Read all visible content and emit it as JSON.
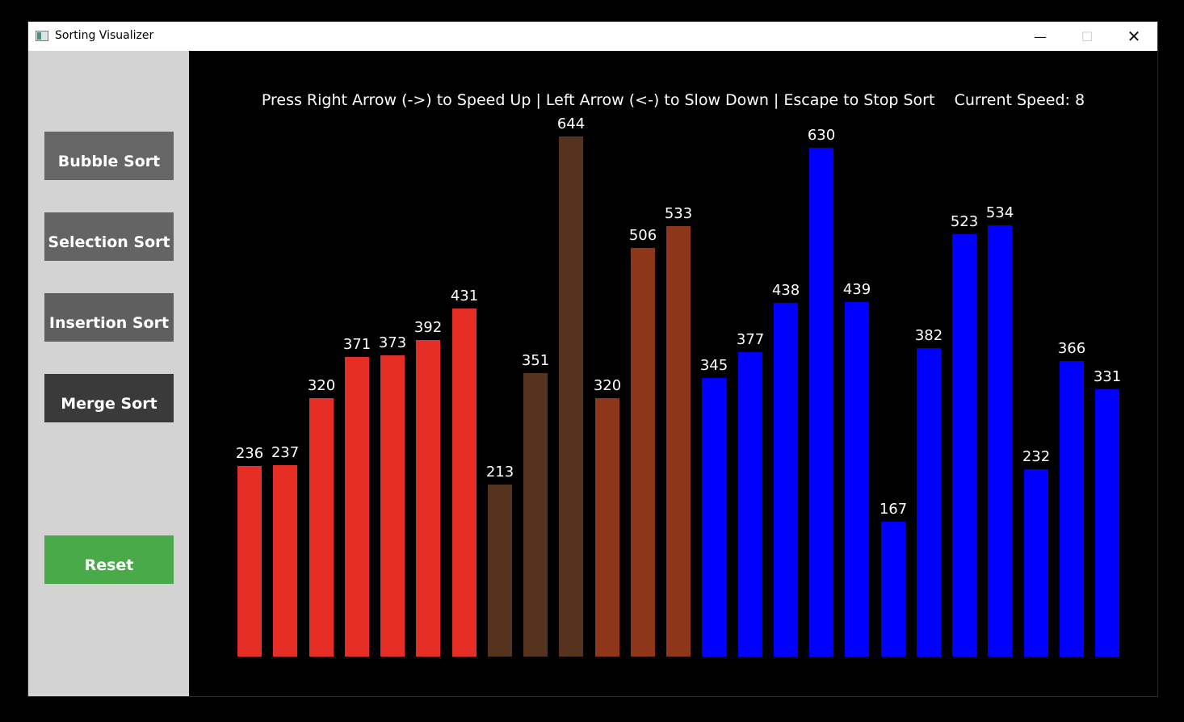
{
  "window": {
    "title": "Sorting Visualizer",
    "controls": {
      "minimize": "—",
      "maximize": "☐",
      "close": "✕"
    }
  },
  "sidebar": {
    "bubble_label": "Bubble Sort",
    "selection_label": "Selection Sort",
    "insertion_label": "Insertion Sort",
    "merge_label": "Merge Sort",
    "reset_label": "Reset"
  },
  "canvas": {
    "instructions": "Press Right Arrow (->) to Speed Up | Left Arrow (<-) to Slow Down | Escape to Stop Sort    Current Speed: 8"
  },
  "colors": {
    "sorted_left": "#e52e25",
    "active_dark": "#55331e",
    "active_mid": "#8e3718",
    "unsorted": "#0000ff",
    "reset_green": "#4aaa4a"
  },
  "chart_data": {
    "type": "bar",
    "title": "",
    "values": [
      236,
      237,
      320,
      371,
      373,
      392,
      431,
      213,
      351,
      644,
      320,
      506,
      533,
      345,
      377,
      438,
      630,
      439,
      167,
      382,
      523,
      534,
      232,
      366,
      331
    ],
    "states": [
      "sorted",
      "sorted",
      "sorted",
      "sorted",
      "sorted",
      "sorted",
      "sorted",
      "active_dark",
      "active_dark",
      "active_dark",
      "active_mid",
      "active_mid",
      "active_mid",
      "unsorted",
      "unsorted",
      "unsorted",
      "unsorted",
      "unsorted",
      "unsorted",
      "unsorted",
      "unsorted",
      "unsorted",
      "unsorted",
      "unsorted",
      "unsorted"
    ],
    "ylim": [
      0,
      644
    ]
  }
}
